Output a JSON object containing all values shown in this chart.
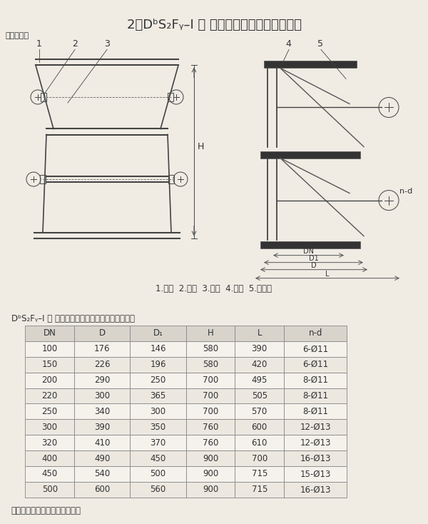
{
  "title": "2、DᵇS₂Fᵧ–Ⅰ 型 双层单门重锤式锁风翻板阀",
  "subtitle": "外形结构图",
  "table_title": "DᵇS₂Fᵧ–Ⅰ 型 双层单门重锤式锁风翻板阀技术参数",
  "note": "注：本阀可按用户要求设计制造",
  "caption": "1.阀体  2.阀轴  3.重锤  4.阀板  5.重锤柄",
  "headers": [
    "DN",
    "D",
    "D₁",
    "H",
    "L",
    "n-d"
  ],
  "rows": [
    [
      "100",
      "176",
      "146",
      "580",
      "390",
      "6-Ø11"
    ],
    [
      "150",
      "226",
      "196",
      "580",
      "420",
      "6-Ø11"
    ],
    [
      "200",
      "290",
      "250",
      "700",
      "495",
      "8-Ø11"
    ],
    [
      "220",
      "300",
      "365",
      "700",
      "505",
      "8-Ø11"
    ],
    [
      "250",
      "340",
      "300",
      "700",
      "570",
      "8-Ø11"
    ],
    [
      "300",
      "390",
      "350",
      "760",
      "600",
      "12-Ø13"
    ],
    [
      "320",
      "410",
      "370",
      "760",
      "610",
      "12-Ø13"
    ],
    [
      "400",
      "490",
      "450",
      "900",
      "700",
      "16-Ø13"
    ],
    [
      "450",
      "540",
      "500",
      "900",
      "715",
      "15-Ø13"
    ],
    [
      "500",
      "600",
      "560",
      "900",
      "715",
      "16-Ø13"
    ]
  ],
  "bg_color": "#f0ece4",
  "line_color": "#555555",
  "text_color": "#333333",
  "table_header_bg": "#e8e4dc",
  "table_row_bg1": "#f5f2ec",
  "table_row_bg2": "#ece8e0"
}
